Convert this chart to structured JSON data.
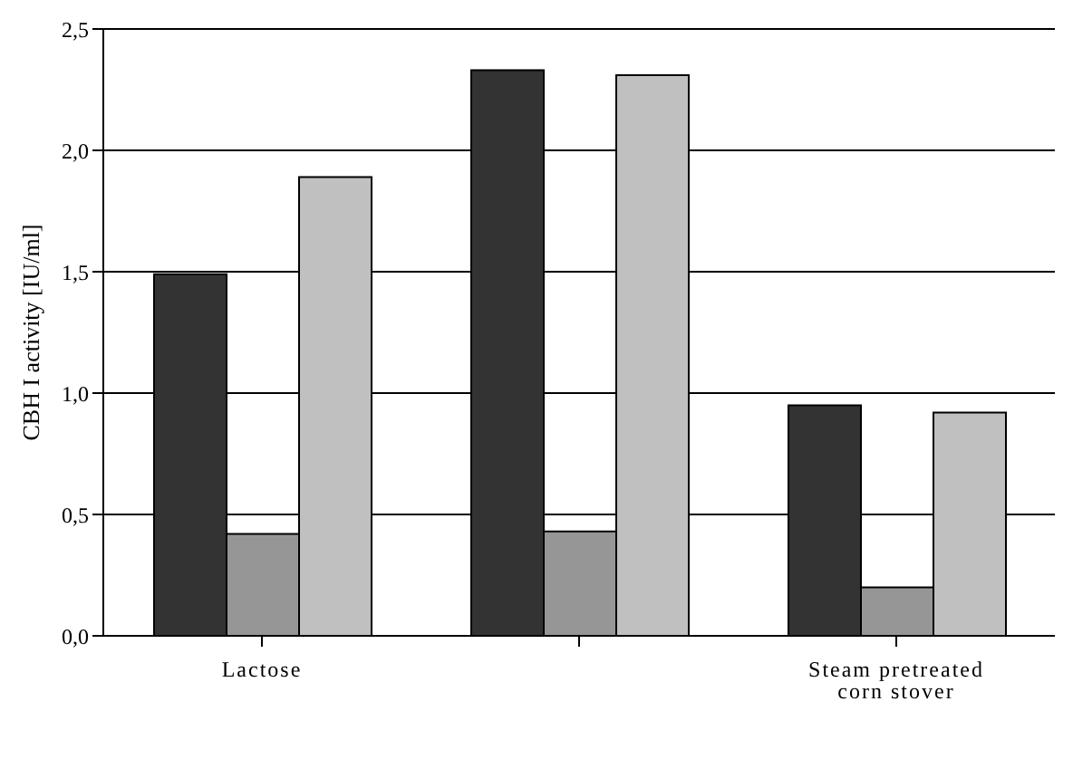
{
  "chart_data": {
    "type": "bar",
    "ylabel": "CBH I activity [IU/ml]",
    "categories": [
      "Lactose",
      null,
      "Steam pretreated corn stover"
    ],
    "series": [
      {
        "color": "#333333",
        "values": [
          1.49,
          2.33,
          0.95
        ]
      },
      {
        "color": "#969696",
        "values": [
          0.42,
          0.43,
          0.2
        ]
      },
      {
        "color": "#c0c0c0",
        "values": [
          1.89,
          2.31,
          0.92
        ]
      }
    ],
    "ylim": [
      0,
      2.5
    ],
    "yticks": [
      {
        "value": 0,
        "label": "0,0"
      },
      {
        "value": 0.5,
        "label": "0,5"
      },
      {
        "value": 1,
        "label": "1,0"
      },
      {
        "value": 1.5,
        "label": "1,5"
      },
      {
        "value": 2,
        "label": "2,0"
      },
      {
        "value": 2.5,
        "label": "2,5"
      }
    ],
    "grid": "y",
    "legend": false
  }
}
